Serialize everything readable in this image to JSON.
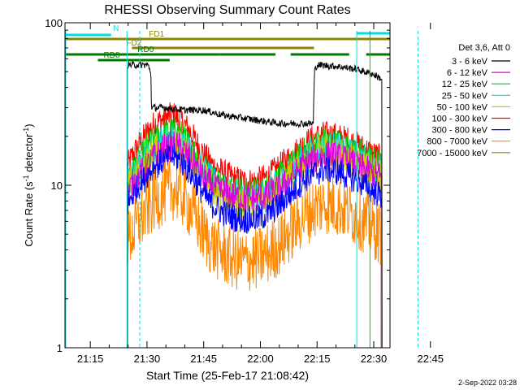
{
  "chart_data": {
    "type": "line",
    "title": "RHESSI Observing Summary Count Rates",
    "xlabel": "Start Time (25-Feb-17 21:08:42)",
    "ylabel_main": "Count Rate (s",
    "ylabel_sup1": "-1",
    "ylabel_mid": " detector",
    "ylabel_sup2": "-1",
    "ylabel_end": ")",
    "footer": "2-Sep-2022 03:28",
    "y_scale": "log",
    "ylim": [
      1,
      100
    ],
    "xlim_minutes": [
      -6.7,
      79.3
    ],
    "x_ticks": [
      {
        "label": "21:15",
        "value": 0
      },
      {
        "label": "21:30",
        "value": 15
      },
      {
        "label": "21:45",
        "value": 30
      },
      {
        "label": "22:00",
        "value": 45
      },
      {
        "label": "22:15",
        "value": 60
      },
      {
        "label": "22:30",
        "value": 75
      },
      {
        "label": "22:45",
        "value": 90
      }
    ],
    "y_ticks": [
      {
        "label": "1",
        "value": 1
      },
      {
        "label": "10",
        "value": 10
      },
      {
        "label": "100",
        "value": 100
      }
    ],
    "legend_title": "Det 3,6, Att 0",
    "legend_position": "right",
    "series": [
      {
        "name": "3 - 6 keV",
        "color": "#000000",
        "values": [
          [
            9.8,
            55
          ],
          [
            12,
            55
          ],
          [
            15.2,
            55
          ],
          [
            16,
            50
          ],
          [
            16.2,
            30
          ],
          [
            20,
            30
          ],
          [
            25,
            29
          ],
          [
            30,
            29
          ],
          [
            35,
            27
          ],
          [
            40,
            26
          ],
          [
            45,
            25
          ],
          [
            50,
            24
          ],
          [
            55,
            24
          ],
          [
            59,
            24
          ],
          [
            59.3,
            50
          ],
          [
            60,
            55
          ],
          [
            65,
            54
          ],
          [
            70,
            52
          ],
          [
            75,
            48
          ],
          [
            77.2,
            45
          ]
        ]
      },
      {
        "name": "6 - 12 keV",
        "color": "#dd00dd",
        "values": [
          [
            9.8,
            9
          ],
          [
            11,
            10
          ],
          [
            13,
            11.5
          ],
          [
            15,
            13
          ],
          [
            17,
            15
          ],
          [
            20,
            17
          ],
          [
            22,
            17.5
          ],
          [
            24,
            17
          ],
          [
            26,
            15
          ],
          [
            28,
            13
          ],
          [
            30,
            11
          ],
          [
            32,
            10
          ],
          [
            35,
            9
          ],
          [
            38,
            8.5
          ],
          [
            41,
            8.2
          ],
          [
            44,
            8.3
          ],
          [
            47,
            8.6
          ],
          [
            50,
            9.5
          ],
          [
            53,
            11
          ],
          [
            56,
            13
          ],
          [
            59,
            14.5
          ],
          [
            62,
            15.5
          ],
          [
            65,
            15
          ],
          [
            68,
            14
          ],
          [
            71,
            13
          ],
          [
            74,
            12
          ],
          [
            77,
            11
          ]
        ]
      },
      {
        "name": "12 - 25 keV",
        "color": "#00cc00",
        "values": [
          [
            9.8,
            11
          ],
          [
            11,
            12
          ],
          [
            13,
            14
          ],
          [
            15,
            17
          ],
          [
            17,
            19
          ],
          [
            20,
            21
          ],
          [
            22,
            21.5
          ],
          [
            24,
            20.5
          ],
          [
            26,
            18
          ],
          [
            28,
            15.5
          ],
          [
            30,
            13
          ],
          [
            32,
            11.5
          ],
          [
            35,
            10
          ],
          [
            38,
            9.3
          ],
          [
            41,
            9
          ],
          [
            44,
            9.1
          ],
          [
            47,
            9.6
          ],
          [
            50,
            11
          ],
          [
            53,
            13
          ],
          [
            56,
            15.5
          ],
          [
            59,
            17.5
          ],
          [
            62,
            18.5
          ],
          [
            65,
            18
          ],
          [
            68,
            17
          ],
          [
            71,
            16
          ],
          [
            74,
            14.5
          ],
          [
            77,
            13
          ]
        ]
      },
      {
        "name": "25 - 50 keV",
        "color": "#00dddd",
        "values": [
          [
            9.8,
            10
          ],
          [
            11,
            11
          ],
          [
            13,
            12.5
          ],
          [
            15,
            15
          ],
          [
            17,
            17
          ],
          [
            20,
            18.5
          ],
          [
            22,
            19
          ],
          [
            24,
            18
          ],
          [
            26,
            16
          ],
          [
            28,
            14
          ],
          [
            30,
            12
          ],
          [
            32,
            10.5
          ],
          [
            35,
            9.2
          ],
          [
            38,
            8.5
          ],
          [
            41,
            8.2
          ],
          [
            44,
            8.3
          ],
          [
            47,
            8.8
          ],
          [
            50,
            10
          ],
          [
            53,
            12
          ],
          [
            56,
            14
          ],
          [
            59,
            16
          ],
          [
            62,
            17
          ],
          [
            65,
            16.5
          ],
          [
            68,
            15.5
          ],
          [
            71,
            14.5
          ],
          [
            74,
            13
          ],
          [
            77,
            12
          ]
        ]
      },
      {
        "name": "50 - 100 keV",
        "color": "#cccc00",
        "values": [
          [
            9.8,
            9.5
          ],
          [
            11,
            10.5
          ],
          [
            13,
            12
          ],
          [
            15,
            14
          ],
          [
            17,
            16
          ],
          [
            20,
            17.5
          ],
          [
            22,
            18
          ],
          [
            24,
            17
          ],
          [
            26,
            15
          ],
          [
            28,
            13
          ],
          [
            30,
            11.5
          ],
          [
            32,
            10
          ],
          [
            35,
            8.8
          ],
          [
            38,
            8
          ],
          [
            41,
            7.8
          ],
          [
            44,
            7.9
          ],
          [
            47,
            8.4
          ],
          [
            50,
            9.5
          ],
          [
            53,
            11.5
          ],
          [
            56,
            13.5
          ],
          [
            59,
            15
          ],
          [
            62,
            16
          ],
          [
            65,
            15.5
          ],
          [
            68,
            14.5
          ],
          [
            71,
            13.5
          ],
          [
            74,
            12.5
          ],
          [
            77,
            11.5
          ]
        ]
      },
      {
        "name": "100 - 300 keV",
        "color": "#ff0000",
        "values": [
          [
            9.8,
            13
          ],
          [
            11,
            15
          ],
          [
            13,
            18
          ],
          [
            15,
            21
          ],
          [
            17,
            24
          ],
          [
            20,
            26
          ],
          [
            22,
            27
          ],
          [
            24,
            25
          ],
          [
            26,
            22
          ],
          [
            28,
            18.5
          ],
          [
            30,
            15.5
          ],
          [
            32,
            13.5
          ],
          [
            35,
            12
          ],
          [
            38,
            11
          ],
          [
            41,
            10.5
          ],
          [
            44,
            10.6
          ],
          [
            47,
            11.3
          ],
          [
            50,
            13
          ],
          [
            53,
            15
          ],
          [
            56,
            17.5
          ],
          [
            59,
            19.5
          ],
          [
            62,
            20.5
          ],
          [
            65,
            20
          ],
          [
            68,
            19
          ],
          [
            71,
            17.5
          ],
          [
            74,
            16
          ],
          [
            77,
            14.5
          ]
        ]
      },
      {
        "name": "300 - 800 keV",
        "color": "#0000ff",
        "values": [
          [
            9.8,
            7.5
          ],
          [
            11,
            8.5
          ],
          [
            13,
            10
          ],
          [
            15,
            11.5
          ],
          [
            17,
            13
          ],
          [
            20,
            14.5
          ],
          [
            22,
            15
          ],
          [
            24,
            14
          ],
          [
            26,
            12.3
          ],
          [
            28,
            10.5
          ],
          [
            30,
            8.8
          ],
          [
            32,
            7.7
          ],
          [
            35,
            6.8
          ],
          [
            38,
            6.3
          ],
          [
            41,
            6.1
          ],
          [
            44,
            6.2
          ],
          [
            47,
            6.6
          ],
          [
            50,
            7.5
          ],
          [
            53,
            8.8
          ],
          [
            56,
            10.5
          ],
          [
            59,
            11.8
          ],
          [
            62,
            12.5
          ],
          [
            65,
            12.2
          ],
          [
            68,
            11.5
          ],
          [
            71,
            10.5
          ],
          [
            74,
            9.5
          ],
          [
            77,
            8.5
          ]
        ]
      },
      {
        "name": "800 - 7000 keV",
        "color": "#ff8800",
        "values": [
          [
            9.8,
            4.5
          ],
          [
            11,
            5
          ],
          [
            13,
            6
          ],
          [
            15,
            7
          ],
          [
            17,
            8
          ],
          [
            20,
            9
          ],
          [
            22,
            9.5
          ],
          [
            24,
            8.8
          ],
          [
            26,
            7.5
          ],
          [
            28,
            6.2
          ],
          [
            30,
            5
          ],
          [
            32,
            4.3
          ],
          [
            35,
            3.8
          ],
          [
            38,
            3.5
          ],
          [
            41,
            3.4
          ],
          [
            44,
            3.5
          ],
          [
            47,
            3.8
          ],
          [
            50,
            4.3
          ],
          [
            53,
            5.2
          ],
          [
            56,
            6.3
          ],
          [
            59,
            7.2
          ],
          [
            62,
            7.8
          ],
          [
            65,
            7.5
          ],
          [
            68,
            7
          ],
          [
            71,
            6.3
          ],
          [
            74,
            5.6
          ],
          [
            77,
            5
          ]
        ]
      },
      {
        "name": "7000 - 15000 keV",
        "color": "#888800",
        "values": []
      }
    ],
    "flags": [
      {
        "label": "N",
        "color": "#00dddd",
        "segments": [
          [
            -6.7,
            5.5
          ],
          [
            70.5,
            79.3
          ]
        ]
      },
      {
        "label": "FD1",
        "color": "#888800",
        "segments": [
          [
            -6.7,
            79.3
          ]
        ],
        "note_segments": [
          [
            5.5,
            60
          ],
          [
            60,
            79.3
          ]
        ]
      },
      {
        "label": "FD2",
        "color": "#888800",
        "segments": [
          [
            11,
            59.2
          ]
        ]
      },
      {
        "label": "RD0",
        "color": "#007700",
        "segments": [
          [
            -6.7,
            34.2
          ],
          [
            34.2,
            49
          ],
          [
            53,
            68.5
          ],
          [
            73,
            79.3
          ]
        ]
      },
      {
        "label": "RD8",
        "color": "#007700",
        "segments": [
          [
            2,
            21
          ]
        ]
      }
    ],
    "vlines": [
      {
        "color": "#00dddd",
        "style": "solid",
        "x": -6.5
      },
      {
        "color": "#00dddd",
        "style": "solid",
        "x": 9.7
      },
      {
        "color": "#00dddd",
        "style": "dashed",
        "x": 13.1
      },
      {
        "color": "#00dddd",
        "style": "solid",
        "x": 70.5
      },
      {
        "color": "#00cc00",
        "style": "solid",
        "x": 74.0
      },
      {
        "color": "#00dddd",
        "style": "dashed",
        "x": 86.7
      }
    ]
  }
}
